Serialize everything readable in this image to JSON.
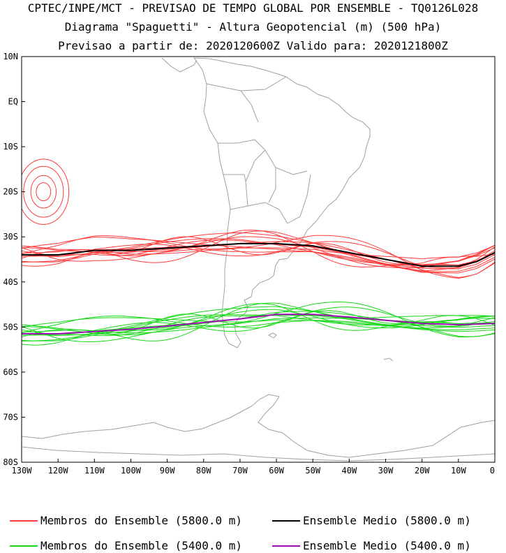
{
  "titles": {
    "line1": "CPTEC/INPE/MCT - PREVISAO DE TEMPO GLOBAL POR ENSEMBLE - TQ0126L028",
    "line2": "Diagrama \"Spaguetti\" - Altura Geopotencial (m) (500 hPa)",
    "line3": "Previsao a partir de: 2020120600Z  Valido para: 2020121800Z"
  },
  "axes": {
    "lat_labels": [
      "10N",
      "EQ",
      "10S",
      "20S",
      "30S",
      "40S",
      "50S",
      "60S",
      "70S",
      "80S"
    ],
    "lat_values": [
      10,
      0,
      -10,
      -20,
      -30,
      -40,
      -50,
      -60,
      -70,
      -80
    ],
    "lon_labels": [
      "130W",
      "120W",
      "110W",
      "100W",
      "90W",
      "80W",
      "70W",
      "60W",
      "50W",
      "40W",
      "30W",
      "20W",
      "10W",
      "0"
    ],
    "lon_values": [
      -130,
      -120,
      -110,
      -100,
      -90,
      -80,
      -70,
      -60,
      -50,
      -40,
      -30,
      -20,
      -10,
      0
    ]
  },
  "colors": {
    "member_5800": "#ff3b3b",
    "member_5400": "#18d818",
    "mean_5800": "#000000",
    "mean_5400": "#9b10b0",
    "coast": "#a0a0a0"
  },
  "legend": [
    {
      "label": "Membros do Ensemble (5800.0 m)",
      "color": "#ff3b3b"
    },
    {
      "label": "Ensemble Medio (5800.0 m)",
      "color": "#000000"
    },
    {
      "label": "Membros do Ensemble (5400.0 m)",
      "color": "#18d818"
    },
    {
      "label": "Ensemble Medio (5400.0 m)",
      "color": "#9b10b0"
    }
  ],
  "chart_data": {
    "type": "line",
    "xlim": [
      -130,
      0
    ],
    "ylim": [
      -80,
      10
    ],
    "mean_5800": {
      "x": [
        -130,
        -120,
        -110,
        -100,
        -90,
        -80,
        -70,
        -60,
        -50,
        -40,
        -30,
        -20,
        -10,
        -5,
        0
      ],
      "y": [
        -34,
        -34,
        -33,
        -33,
        -32.5,
        -32,
        -31.5,
        -31.5,
        -32,
        -33.5,
        -35,
        -36.5,
        -36.5,
        -35.5,
        -33.5
      ]
    },
    "mean_5400": {
      "x": [
        -130,
        -120,
        -110,
        -100,
        -90,
        -80,
        -70,
        -60,
        -50,
        -40,
        -30,
        -20,
        -10,
        0
      ],
      "y": [
        -51.5,
        -51.5,
        -51,
        -50.5,
        -49.8,
        -49,
        -48.2,
        -47.2,
        -47.2,
        -47.8,
        -48.5,
        -49.2,
        -49.5,
        -49.2
      ]
    }
  }
}
